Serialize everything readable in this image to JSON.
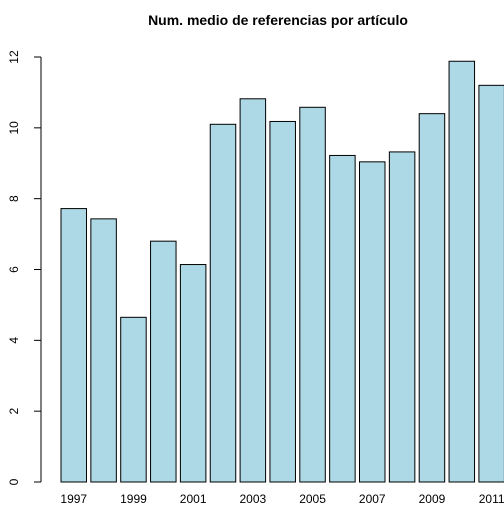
{
  "chart_data": {
    "type": "bar",
    "title": "Num. medio de referencias por artículo",
    "xlabel": "",
    "ylabel": "",
    "categories": [
      "1997",
      "1998",
      "1999",
      "2000",
      "2001",
      "2002",
      "2003",
      "2004",
      "2005",
      "2006",
      "2007",
      "2008",
      "2009",
      "2010",
      "2011"
    ],
    "x_tick_labels": [
      "1997",
      "1999",
      "2001",
      "2003",
      "2005",
      "2007",
      "2009",
      "2011"
    ],
    "values": [
      7.72,
      7.43,
      4.65,
      6.8,
      6.14,
      10.1,
      10.82,
      10.18,
      10.58,
      9.22,
      9.04,
      9.32,
      10.4,
      11.88,
      11.2
    ],
    "ylim": [
      0,
      12
    ],
    "y_ticks": [
      0,
      2,
      4,
      6,
      8,
      10,
      12
    ],
    "grid": false,
    "legend": "none",
    "colors": {
      "bar_fill": "#add8e6",
      "bar_stroke": "#000000"
    }
  }
}
